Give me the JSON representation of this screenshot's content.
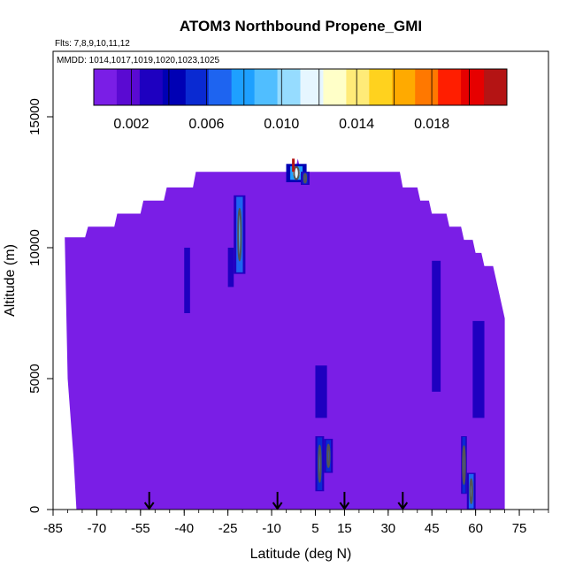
{
  "chart_data": {
    "type": "heatmap",
    "title": "ATOM3 Northbound Propene_GMI",
    "flights_label": "Flts: 7,8,9,10,11,12",
    "dates_label": "MMDD: 1014,1017,1019,1020,1023,1025",
    "xlabel": "Latitude (deg N)",
    "ylabel": "Altitude (m)",
    "xlim": [
      -85,
      85
    ],
    "ylim": [
      0,
      17500
    ],
    "x_ticks": [
      -85,
      -70,
      -55,
      -40,
      -25,
      -10,
      5,
      15,
      30,
      45,
      60,
      75
    ],
    "y_ticks": [
      0,
      5000,
      10000,
      15000
    ],
    "colorbar": {
      "range": [
        0,
        0.022
      ],
      "ticks": [
        "0.002",
        "0.006",
        "0.010",
        "0.014",
        "0.018"
      ],
      "tick_values": [
        0.002,
        0.006,
        0.01,
        0.014,
        0.018
      ],
      "colors": [
        "#7a1ee6",
        "#5a0ad2",
        "#1e00c0",
        "#0000b4",
        "#0a2ad2",
        "#1e64f0",
        "#1ea0ff",
        "#50beff",
        "#96dcff",
        "#e6f6ff",
        "#ffffc8",
        "#ffeb78",
        "#ffd21e",
        "#ffaa00",
        "#ff7800",
        "#ff1e00",
        "#e60000",
        "#b41414"
      ]
    },
    "background_value": 0.0005,
    "coverage_top_altitude": [
      [
        -81,
        10400
      ],
      [
        -74,
        10400
      ],
      [
        -73,
        10800
      ],
      [
        -64,
        10800
      ],
      [
        -63,
        11300
      ],
      [
        -55,
        11300
      ],
      [
        -54,
        11800
      ],
      [
        -47,
        11800
      ],
      [
        -46,
        12300
      ],
      [
        -37,
        12300
      ],
      [
        -36,
        12900
      ],
      [
        -2,
        12900
      ],
      [
        -1,
        13400
      ],
      [
        0,
        12900
      ],
      [
        34,
        12900
      ],
      [
        35,
        12300
      ],
      [
        40,
        12300
      ],
      [
        41,
        11800
      ],
      [
        44,
        11800
      ],
      [
        45,
        11300
      ],
      [
        50,
        11300
      ],
      [
        51,
        10800
      ],
      [
        55,
        10800
      ],
      [
        56,
        10300
      ],
      [
        59,
        10300
      ],
      [
        60,
        9800
      ],
      [
        62,
        9800
      ],
      [
        63,
        9300
      ],
      [
        66,
        9300
      ],
      [
        67,
        8800
      ],
      [
        68,
        8300
      ],
      [
        69,
        7800
      ],
      [
        70,
        7300
      ],
      [
        70,
        0
      ]
    ],
    "coverage_bottom_left": [
      [
        -81,
        10400
      ],
      [
        -80,
        5000
      ],
      [
        -78,
        2000
      ],
      [
        -77,
        0
      ]
    ],
    "enhanced_features": [
      {
        "lat": [
          -23,
          -19
        ],
        "alt": [
          9000,
          12000
        ],
        "peak": 0.009
      },
      {
        "lat": [
          -5,
          2
        ],
        "alt": [
          12500,
          13200
        ],
        "peak": 0.011
      },
      {
        "lat": [
          0,
          3
        ],
        "alt": [
          12400,
          12900
        ],
        "peak": 0.007
      },
      {
        "lat": [
          5,
          8
        ],
        "alt": [
          700,
          2800
        ],
        "peak": 0.008
      },
      {
        "lat": [
          8,
          11
        ],
        "alt": [
          1400,
          2700
        ],
        "peak": 0.007
      },
      {
        "lat": [
          5,
          9
        ],
        "alt": [
          3500,
          5500
        ],
        "peak": 0.003
      },
      {
        "lat": [
          55,
          57
        ],
        "alt": [
          600,
          2800
        ],
        "peak": 0.007
      },
      {
        "lat": [
          57,
          60
        ],
        "alt": [
          0,
          1400
        ],
        "peak": 0.009
      },
      {
        "lat": [
          59,
          63
        ],
        "alt": [
          3500,
          7200
        ],
        "peak": 0.003
      },
      {
        "lat": [
          45,
          48
        ],
        "alt": [
          4500,
          9500
        ],
        "peak": 0.002
      },
      {
        "lat": [
          -40,
          -38
        ],
        "alt": [
          7500,
          10000
        ],
        "peak": 0.0015
      },
      {
        "lat": [
          -25,
          -23
        ],
        "alt": [
          8500,
          10000
        ],
        "peak": 0.0015
      }
    ],
    "flight_markers_lat": [
      -52,
      -8,
      15,
      35
    ]
  }
}
